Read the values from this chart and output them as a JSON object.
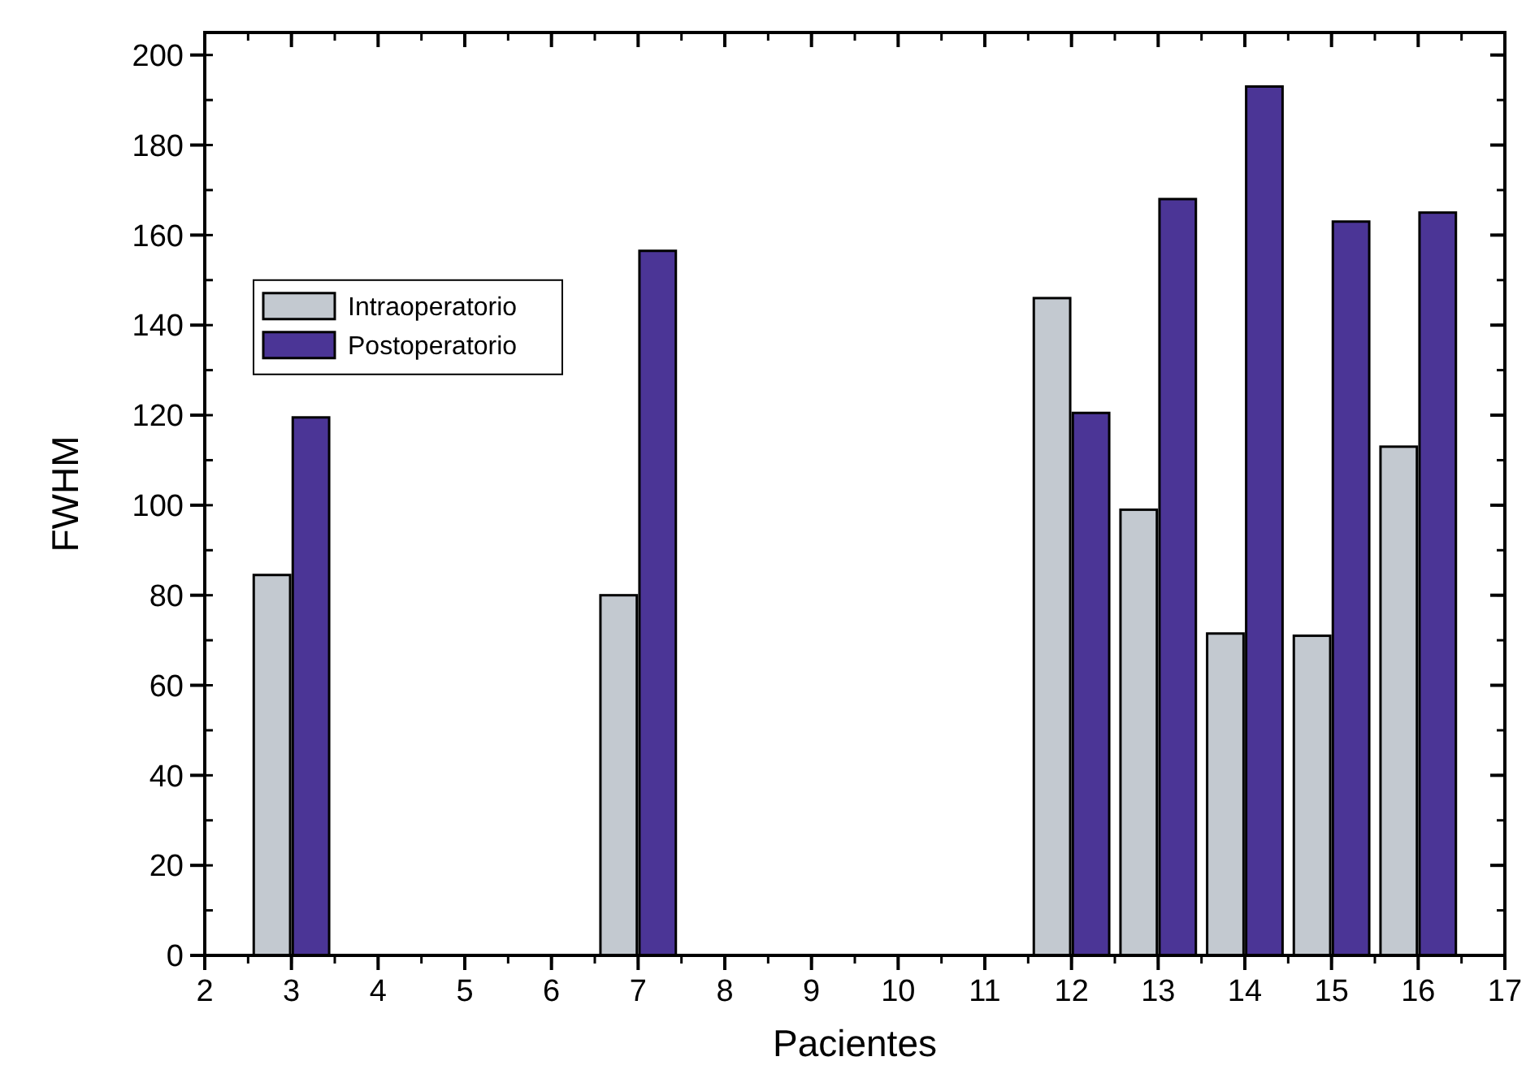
{
  "chart_data": {
    "type": "bar",
    "xlabel": "Pacientes",
    "ylabel": "FWHM",
    "x": [
      3,
      7,
      12,
      13,
      14,
      15,
      16
    ],
    "series": [
      {
        "name": "Intraoperatorio",
        "color": "#c3c9d0",
        "values": [
          84.5,
          80,
          146,
          99,
          71.5,
          71,
          113
        ]
      },
      {
        "name": "Postoperatorio",
        "color": "#4b3596",
        "values": [
          119.5,
          156.5,
          120.5,
          168,
          193,
          163,
          165
        ]
      }
    ],
    "xlim": [
      2,
      17
    ],
    "xticks": [
      2,
      3,
      4,
      5,
      6,
      7,
      8,
      9,
      10,
      11,
      12,
      13,
      14,
      15,
      16,
      17
    ],
    "ylim": [
      0,
      205
    ],
    "yticks": [
      0,
      20,
      40,
      60,
      80,
      100,
      120,
      140,
      160,
      180,
      200
    ],
    "grid": false,
    "legend": "top left"
  }
}
